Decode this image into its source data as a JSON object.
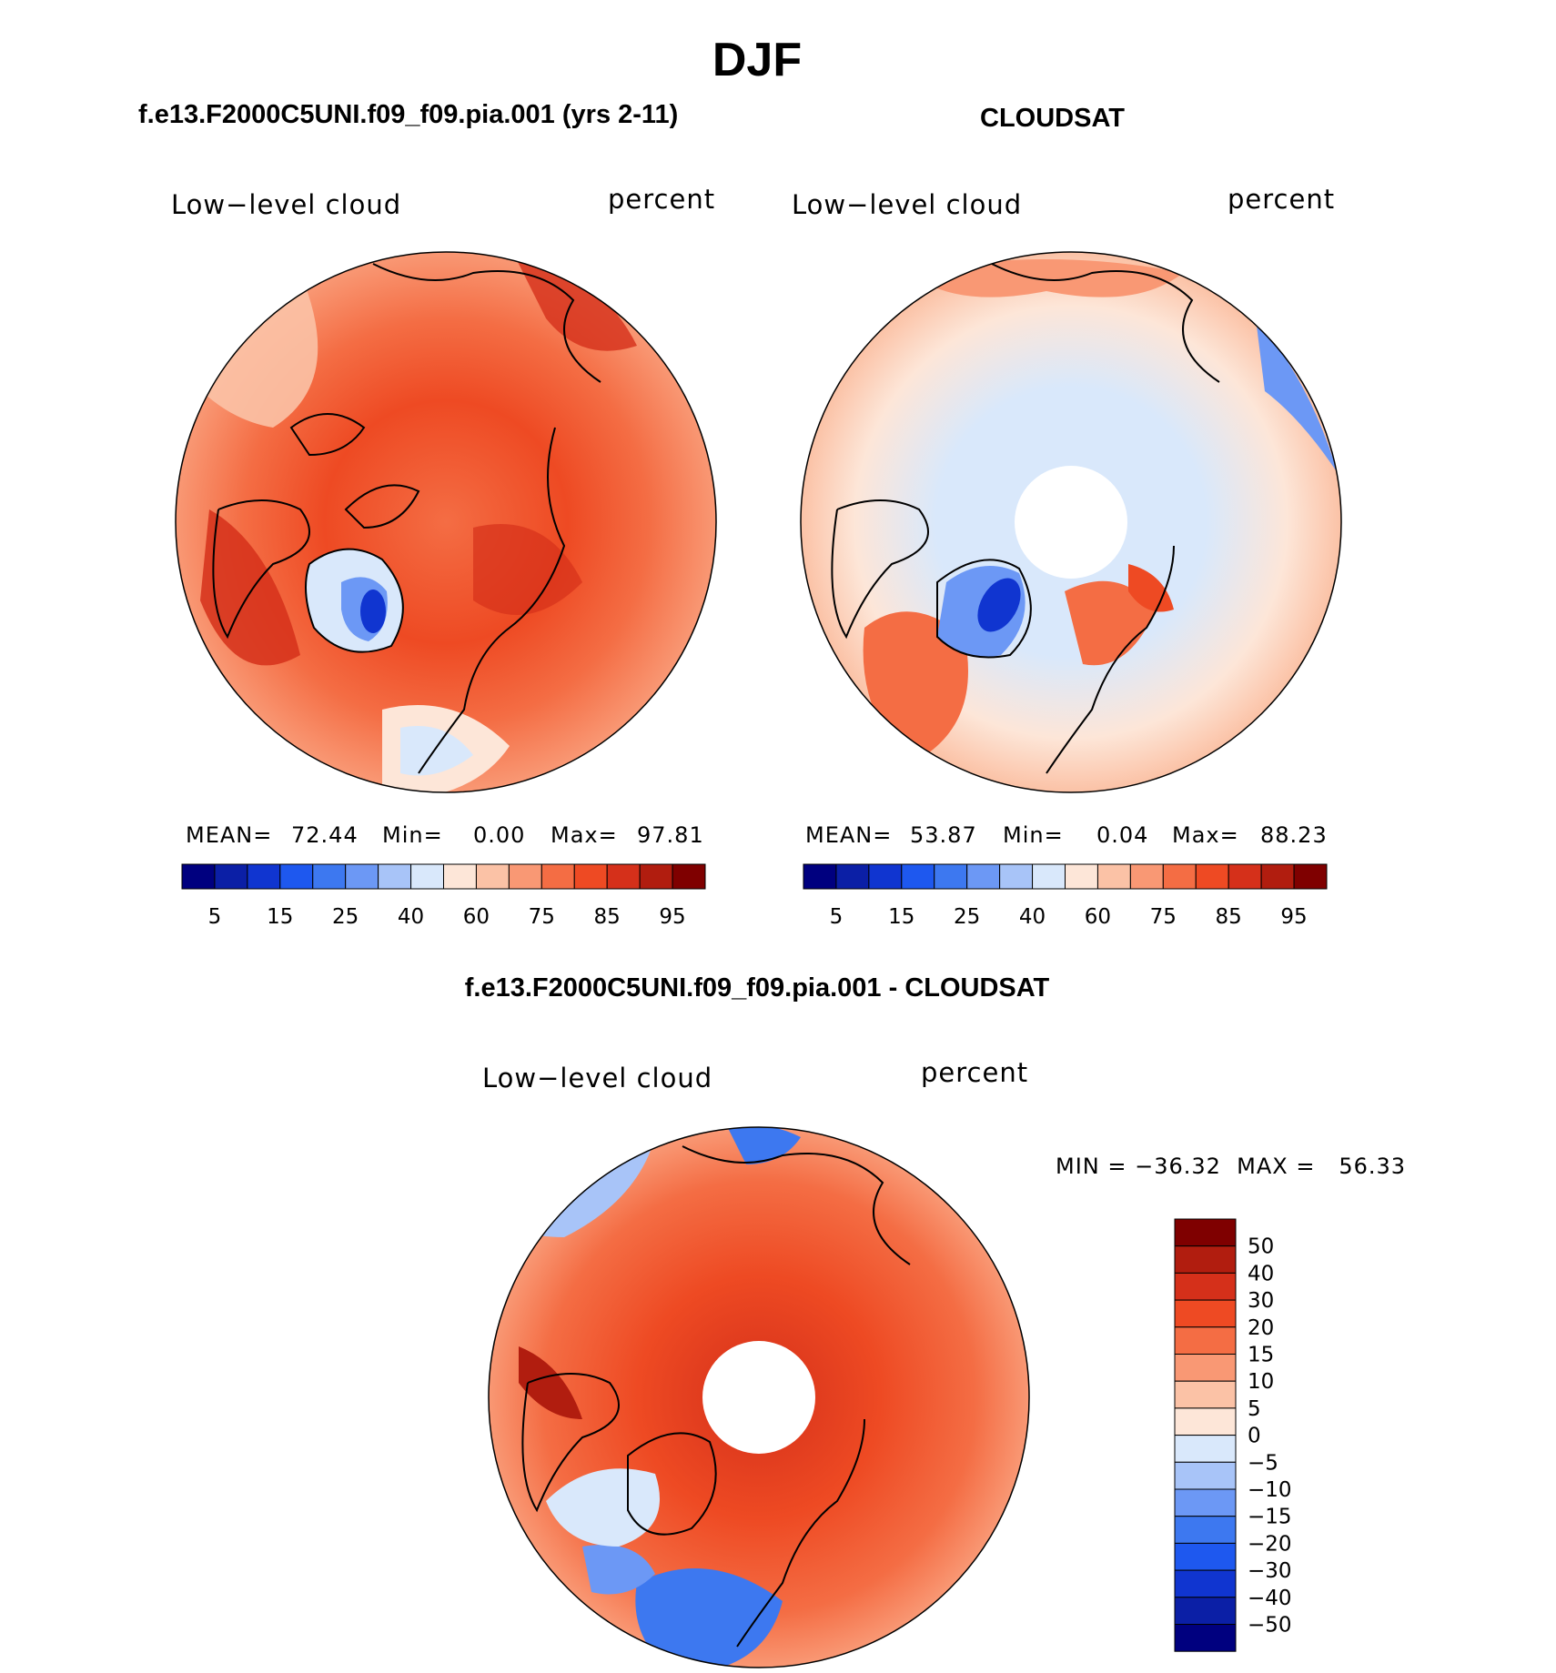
{
  "season": "DJF",
  "panels": [
    {
      "id": "model",
      "title": "f.e13.F2000C5UNI.f09_f09.pia.001 (yrs 2-11)",
      "left_label": "Low−level cloud",
      "right_label": "percent",
      "stats": {
        "mean_label": "MEAN=",
        "mean": "72.44",
        "min_label": "Min=",
        "min": "0.00",
        "max_label": "Max=",
        "max": "97.81"
      },
      "polar_hole": false
    },
    {
      "id": "obs",
      "title": "CLOUDSAT",
      "left_label": "Low−level cloud",
      "right_label": "percent",
      "stats": {
        "mean_label": "MEAN=",
        "mean": "53.87",
        "min_label": "Min=",
        "min": "0.04",
        "max_label": "Max=",
        "max": "88.23"
      },
      "polar_hole": true
    }
  ],
  "abs_colorbar": {
    "colors": [
      "#00007f",
      "#0b1fa6",
      "#1035d0",
      "#1e58ef",
      "#3d78f0",
      "#6c98f5",
      "#a8c4f8",
      "#d9e8fb",
      "#fde6d8",
      "#fbc2a6",
      "#f99874",
      "#f46d44",
      "#ee4a23",
      "#d5301a",
      "#b11d0f",
      "#7f0000"
    ],
    "labels": [
      "5",
      "15",
      "25",
      "40",
      "60",
      "75",
      "85",
      "95"
    ]
  },
  "diff_panel": {
    "title": "f.e13.F2000C5UNI.f09_f09.pia.001 - CLOUDSAT",
    "left_label": "Low−level cloud",
    "right_label": "percent",
    "minmax": "MIN = −36.32  MAX =   56.33",
    "polar_hole": true
  },
  "diff_colorbar": {
    "colors": [
      "#7f0000",
      "#b11d0f",
      "#d5301a",
      "#ee4a23",
      "#f46d44",
      "#f99874",
      "#fbc2a6",
      "#fde6d8",
      "#d9e8fb",
      "#a8c4f8",
      "#6c98f5",
      "#3d78f0",
      "#1e58ef",
      "#1035d0",
      "#0b1fa6",
      "#00007f"
    ],
    "labels": [
      "50",
      "40",
      "30",
      "20",
      "15",
      "10",
      "5",
      "0",
      "−5",
      "−10",
      "−15",
      "−20",
      "−30",
      "−40",
      "−50"
    ]
  }
}
